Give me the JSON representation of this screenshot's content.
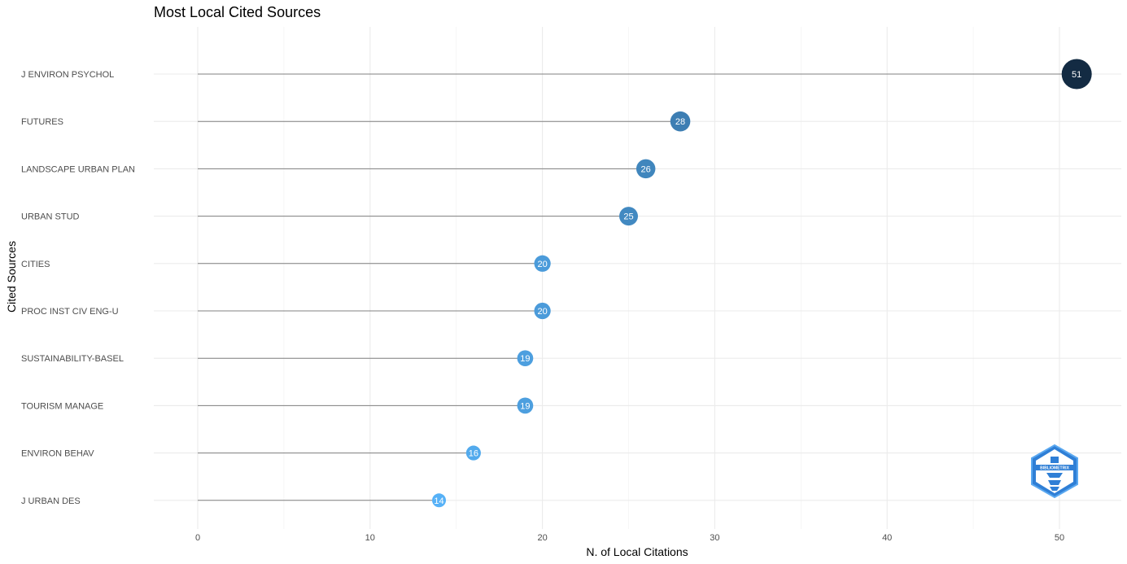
{
  "chart_data": {
    "type": "lollipop",
    "title": "Most Local Cited Sources",
    "xlabel": "N. of Local Citations",
    "ylabel": "Cited Sources",
    "xlim": [
      0,
      53
    ],
    "x_ticks": [
      0,
      10,
      20,
      30,
      40,
      50
    ],
    "grid": true,
    "categories": [
      "J ENVIRON PSYCHOL",
      "FUTURES",
      "LANDSCAPE URBAN PLAN",
      "URBAN STUD",
      "CITIES",
      "PROC INST CIV ENG-U",
      "SUSTAINABILITY-BASEL",
      "TOURISM MANAGE",
      "ENVIRON BEHAV",
      "J URBAN DES"
    ],
    "values": [
      51,
      28,
      26,
      25,
      20,
      20,
      19,
      19,
      16,
      14
    ],
    "color_low": "#56B1F7",
    "color_high": "#132B43",
    "stem_color": "#808080",
    "logo": {
      "name": "bibliometrix-logo",
      "text": "BIBLIOMETRIX"
    }
  }
}
